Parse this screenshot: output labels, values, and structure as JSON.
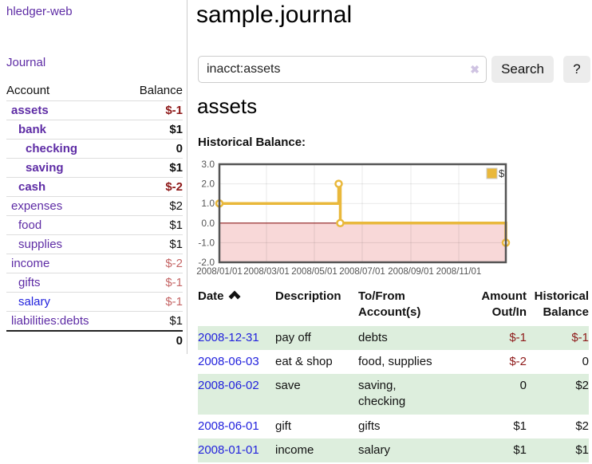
{
  "colors": {
    "link_purple": "#5e2ca5",
    "link_blue": "#2222dd",
    "negative_strong": "#8e1919",
    "negative_soft": "#c56666",
    "row_green": "#ddeedd",
    "chart_line_gold": "#e9b83b",
    "chart_negative_fill": "#f8d8d8",
    "chart_zero_line": "#8b1a1a"
  },
  "app_title": "hledger-web",
  "sidebar": {
    "journal_link": "Journal",
    "account_header": "Account",
    "balance_header": "Balance",
    "accounts": [
      {
        "name": "assets",
        "indent": 0,
        "bold": true,
        "balance": "$-1",
        "tone": "strong",
        "blue": false
      },
      {
        "name": "bank",
        "indent": 1,
        "bold": true,
        "balance": "$1",
        "tone": "none",
        "blue": false
      },
      {
        "name": "checking",
        "indent": 2,
        "bold": true,
        "balance": "0",
        "tone": "none",
        "blue": false
      },
      {
        "name": "saving",
        "indent": 2,
        "bold": true,
        "balance": "$1",
        "tone": "none",
        "blue": false
      },
      {
        "name": "cash",
        "indent": 1,
        "bold": true,
        "balance": "$-2",
        "tone": "strong",
        "blue": false
      },
      {
        "name": "expenses",
        "indent": 0,
        "bold": false,
        "balance": "$2",
        "tone": "none",
        "blue": false
      },
      {
        "name": "food",
        "indent": 1,
        "bold": false,
        "balance": "$1",
        "tone": "none",
        "blue": false
      },
      {
        "name": "supplies",
        "indent": 1,
        "bold": false,
        "balance": "$1",
        "tone": "none",
        "blue": false
      },
      {
        "name": "income",
        "indent": 0,
        "bold": false,
        "balance": "$-2",
        "tone": "soft",
        "blue": false
      },
      {
        "name": "gifts",
        "indent": 1,
        "bold": false,
        "balance": "$-1",
        "tone": "soft",
        "blue": false
      },
      {
        "name": "salary",
        "indent": 1,
        "bold": false,
        "balance": "$-1",
        "tone": "soft",
        "blue": true
      },
      {
        "name": "liabilities:debts",
        "indent": 0,
        "bold": false,
        "balance": "$1",
        "tone": "none",
        "blue": false
      }
    ],
    "total": "0"
  },
  "main": {
    "title": "sample.journal",
    "search": {
      "value": "inacct:assets",
      "clear": "✖",
      "button": "Search",
      "help": "?"
    },
    "heading": "assets",
    "chart_title": "Historical Balance:"
  },
  "chart_data": {
    "type": "line",
    "step": true,
    "title": "Historical Balance",
    "series": [
      {
        "name": "$",
        "points": [
          [
            "2008-01-01",
            1.0
          ],
          [
            "2008-06-01",
            2.0
          ],
          [
            "2008-06-03",
            0.0
          ],
          [
            "2008-12-31",
            -1.0
          ]
        ]
      }
    ],
    "xrange": [
      "2008-01-01",
      "2008-12-31"
    ],
    "ylim": [
      -2,
      3
    ],
    "yticks": [
      "3.0",
      "2.0",
      "1.0",
      "0.0",
      "-1.0",
      "-2.0"
    ],
    "xticks": [
      "2008/01/01",
      "2008/03/01",
      "2008/05/01",
      "2008/07/01",
      "2008/09/01",
      "2008/11/01"
    ],
    "legend": {
      "label": "$",
      "position": "top-right"
    },
    "grid": true
  },
  "register": {
    "headers": {
      "date": "Date",
      "description": "Description",
      "tofrom": "To/From\nAccount(s)",
      "amount": "Amount\nOut/In",
      "balance": "Historical\nBalance"
    },
    "rows": [
      {
        "date": "2008-12-31",
        "description": "pay off",
        "accounts": "debts",
        "amount": "$-1",
        "balance": "$-1",
        "amount_neg": true,
        "balance_neg": true,
        "shaded": true
      },
      {
        "date": "2008-06-03",
        "description": "eat & shop",
        "accounts": "food, supplies",
        "amount": "$-2",
        "balance": "0",
        "amount_neg": true,
        "balance_neg": false,
        "shaded": false
      },
      {
        "date": "2008-06-02",
        "description": "save",
        "accounts": "saving,\nchecking",
        "amount": "0",
        "balance": "$2",
        "amount_neg": false,
        "balance_neg": false,
        "shaded": true
      },
      {
        "date": "2008-06-01",
        "description": "gift",
        "accounts": "gifts",
        "amount": "$1",
        "balance": "$2",
        "amount_neg": false,
        "balance_neg": false,
        "shaded": false
      },
      {
        "date": "2008-01-01",
        "description": "income",
        "accounts": "salary",
        "amount": "$1",
        "balance": "$1",
        "amount_neg": false,
        "balance_neg": false,
        "shaded": true
      }
    ]
  }
}
